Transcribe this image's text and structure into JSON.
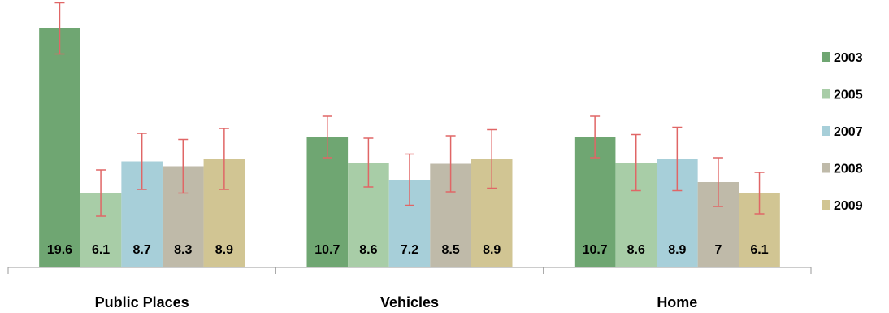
{
  "chart_data": {
    "type": "bar",
    "title": "",
    "xlabel": "",
    "ylabel": "",
    "ylim": [
      0,
      20
    ],
    "grid": false,
    "legend_position": "right",
    "categories": [
      "Public Places",
      "Vehicles",
      "Home"
    ],
    "series": [
      {
        "name": "2003",
        "values": [
          19.6,
          10.7,
          10.7
        ],
        "error": [
          2.1,
          1.7,
          1.7
        ],
        "color": "#6fa672"
      },
      {
        "name": "2005",
        "values": [
          6.1,
          8.6,
          8.6
        ],
        "error": [
          1.9,
          2.0,
          2.3
        ],
        "color": "#a8cda7"
      },
      {
        "name": "2007",
        "values": [
          8.7,
          7.2,
          8.9
        ],
        "error": [
          2.3,
          2.1,
          2.6
        ],
        "color": "#a7cfd9"
      },
      {
        "name": "2008",
        "values": [
          8.3,
          8.5,
          7.0
        ],
        "error": [
          2.2,
          2.3,
          2.0
        ],
        "color": "#bfbaa9"
      },
      {
        "name": "2009",
        "values": [
          8.9,
          8.9,
          6.1
        ],
        "error": [
          2.5,
          2.4,
          1.7
        ],
        "color": "#d1c593"
      }
    ],
    "error_bar_color": "#e06666",
    "data_labels": [
      [
        "19.6",
        "6.1",
        "8.7",
        "8.3",
        "8.9"
      ],
      [
        "10.7",
        "8.6",
        "7.2",
        "8.5",
        "8.9"
      ],
      [
        "10.7",
        "8.6",
        "8.9",
        "7",
        "6.1"
      ]
    ]
  }
}
